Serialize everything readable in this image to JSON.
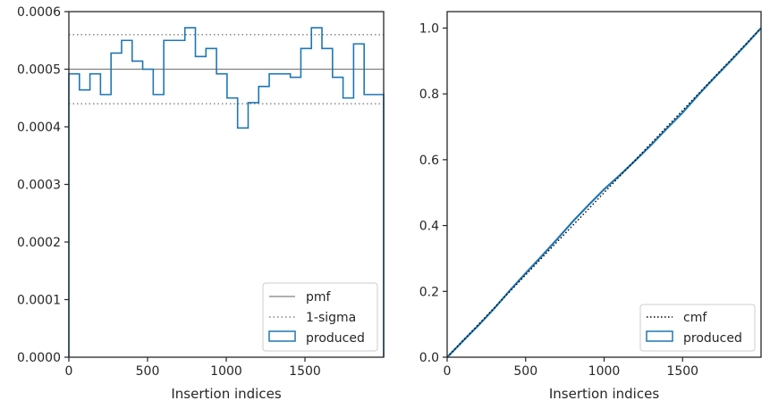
{
  "chart_data": [
    {
      "type": "histogram-step",
      "xlabel": "Insertion indices",
      "ylabel": "",
      "xlim": [
        0,
        2000
      ],
      "ylim": [
        0,
        0.0006
      ],
      "xticks": [
        0,
        500,
        1000,
        1500
      ],
      "yticks": [
        "0.0000",
        "0.0001",
        "0.0002",
        "0.0003",
        "0.0004",
        "0.0005",
        "0.0006"
      ],
      "legend_position": "lower-right",
      "reference_lines": [
        {
          "name": "pmf",
          "style": "solid",
          "color": "#808080",
          "y": 0.0005
        },
        {
          "name": "1-sigma",
          "style": "dotted",
          "color": "#808080",
          "y": [
            0.00044,
            0.00056
          ]
        }
      ],
      "series": [
        {
          "name": "produced",
          "color": "#1f77b4",
          "bin_edges": [
            0,
            67,
            134,
            201,
            268,
            335,
            402,
            469,
            536,
            603,
            670,
            737,
            804,
            871,
            938,
            1005,
            1072,
            1139,
            1206,
            1273,
            1340,
            1407,
            1474,
            1541,
            1608,
            1675,
            1742,
            1809,
            1876,
            1943,
            2000
          ],
          "values": [
            0.000492,
            0.000464,
            0.000492,
            0.000456,
            0.000528,
            0.00055,
            0.000514,
            0.0005,
            0.000456,
            0.00055,
            0.00055,
            0.000572,
            0.000522,
            0.000536,
            0.000492,
            0.00045,
            0.000398,
            0.000442,
            0.00047,
            0.000492,
            0.000492,
            0.000486,
            0.000536,
            0.000572,
            0.000536,
            0.000486,
            0.00045,
            0.000544,
            0.000456,
            0.000456
          ]
        }
      ]
    },
    {
      "type": "line",
      "xlabel": "Insertion indices",
      "ylabel": "",
      "xlim": [
        0,
        2000
      ],
      "ylim": [
        0,
        1.05
      ],
      "xticks": [
        0,
        500,
        1000,
        1500
      ],
      "yticks": [
        "0.0",
        "0.2",
        "0.4",
        "0.6",
        "0.8",
        "1.0"
      ],
      "legend_position": "lower-right",
      "series": [
        {
          "name": "cmf",
          "style": "dotted",
          "color": "#000000",
          "x": [
            0,
            2000
          ],
          "y": [
            0,
            1.0
          ]
        },
        {
          "name": "produced",
          "color": "#1f77b4",
          "x": [
            0,
            100,
            200,
            300,
            400,
            500,
            600,
            700,
            800,
            900,
            1000,
            1100,
            1200,
            1300,
            1400,
            1500,
            1600,
            1700,
            1800,
            1900,
            2000
          ],
          "y": [
            0,
            0.049,
            0.097,
            0.148,
            0.203,
            0.255,
            0.306,
            0.358,
            0.412,
            0.462,
            0.51,
            0.553,
            0.598,
            0.645,
            0.695,
            0.743,
            0.797,
            0.848,
            0.897,
            0.948,
            1.0
          ]
        }
      ]
    }
  ]
}
